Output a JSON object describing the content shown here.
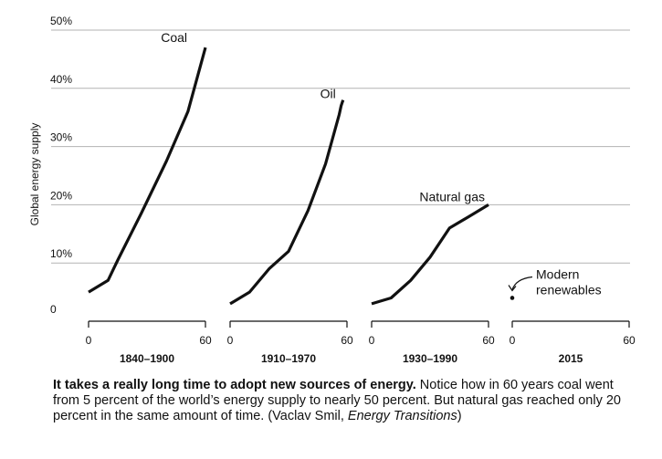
{
  "chart_data": {
    "type": "line",
    "ylabel": "Global energy supply",
    "ylim": [
      0,
      50
    ],
    "y_ticks": [
      "0",
      "10%",
      "20%",
      "30%",
      "40%",
      "50%"
    ],
    "grid": true,
    "panels": [
      {
        "period": "1840–1900",
        "xlim": [
          0,
          60
        ],
        "x_ticks": [
          "0",
          "60"
        ],
        "series": [
          {
            "name": "Coal",
            "points": [
              [
                0,
                5
              ],
              [
                10,
                7
              ],
              [
                15,
                10.5
              ],
              [
                27,
                18.5
              ],
              [
                40,
                27.5
              ],
              [
                51,
                36
              ],
              [
                60,
                47
              ]
            ]
          }
        ]
      },
      {
        "period": "1910–1970",
        "xlim": [
          0,
          60
        ],
        "x_ticks": [
          "0",
          "60"
        ],
        "series": [
          {
            "name": "Oil",
            "points": [
              [
                0,
                3
              ],
              [
                10,
                5
              ],
              [
                20,
                9
              ],
              [
                30,
                12
              ],
              [
                40,
                19
              ],
              [
                49,
                27
              ],
              [
                56,
                35.5
              ],
              [
                57,
                37
              ],
              [
                58,
                38
              ]
            ]
          }
        ]
      },
      {
        "period": "1930–1990",
        "xlim": [
          0,
          60
        ],
        "x_ticks": [
          "0",
          "60"
        ],
        "series": [
          {
            "name": "Natural gas",
            "points": [
              [
                0,
                3
              ],
              [
                10,
                4
              ],
              [
                20,
                7
              ],
              [
                30,
                11
              ],
              [
                40,
                16
              ],
              [
                50,
                18
              ],
              [
                60,
                20
              ]
            ]
          }
        ]
      },
      {
        "period": "2015",
        "xlim": [
          0,
          60
        ],
        "x_ticks": [
          "0",
          "60"
        ],
        "series": [
          {
            "name": "Modern renewables",
            "name_lines": [
              "Modern",
              "renewables"
            ],
            "points": [
              [
                0,
                4
              ]
            ]
          }
        ]
      }
    ]
  },
  "caption": {
    "bold": "It takes a really long time to adopt new sources of energy.",
    "body": " Notice how in 60 years coal went from 5 percent of the world’s energy supply to nearly 50 percent. But natural gas reached only 20 percent in the same amount of time. (Vaclav Smil, ",
    "source_title": "Energy Transitions",
    "end": ")"
  }
}
